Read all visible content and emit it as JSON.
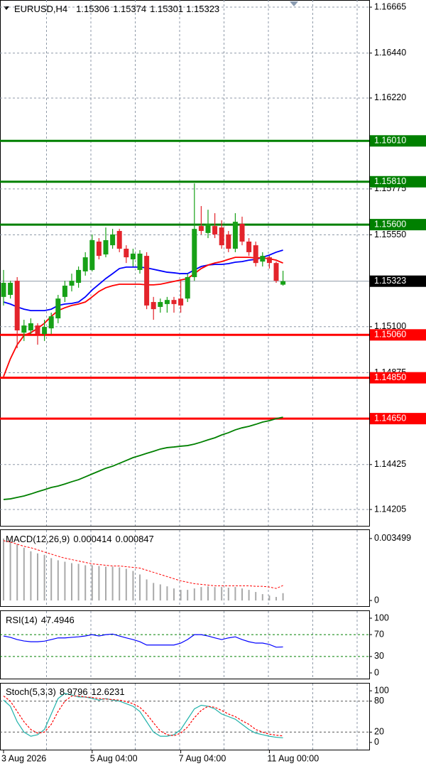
{
  "chart_data": [
    {
      "type": "candlestick",
      "title": "EURUSD,H4",
      "categories": [
        "3 Aug 2026",
        null,
        null,
        null,
        null,
        null,
        null,
        null,
        null,
        null,
        null,
        null,
        null,
        "5 Aug 04:00",
        null,
        null,
        null,
        null,
        null,
        null,
        null,
        null,
        null,
        null,
        null,
        null,
        "7 Aug 04:00",
        null,
        null,
        null,
        null,
        null,
        null,
        null,
        null,
        null,
        null,
        null,
        null,
        "11 Aug 00:00",
        null,
        null
      ],
      "open": [
        1.15246,
        1.15256,
        1.15325,
        1.15071,
        1.15082,
        1.15106,
        1.15064,
        1.15092,
        1.15141,
        1.15246,
        1.15301,
        1.15315,
        1.15371,
        1.15378,
        1.15517,
        1.15454,
        1.15499,
        1.15569,
        1.15482,
        1.1543,
        1.15378,
        1.15447,
        1.15221,
        1.15197,
        1.15211,
        1.15231,
        1.15238,
        1.15238,
        1.15343,
        1.15593,
        1.15559,
        1.15593,
        1.15586,
        1.15552,
        1.15482,
        1.15604,
        1.15517,
        1.15499,
        1.15419,
        1.1544,
        1.15412,
        1.15306
      ],
      "high": [
        1.15378,
        1.15325,
        1.15343,
        1.15134,
        1.15141,
        1.15117,
        1.15134,
        1.15169,
        1.15256,
        1.15325,
        1.1536,
        1.15395,
        1.15465,
        1.15552,
        1.15534,
        1.15586,
        1.15579,
        1.15579,
        1.15499,
        1.15482,
        1.15475,
        1.15465,
        1.15246,
        1.15238,
        1.15246,
        1.15246,
        1.15325,
        1.1536,
        1.15802,
        1.15691,
        1.15673,
        1.15656,
        1.15621,
        1.15569,
        1.15656,
        1.15639,
        1.15534,
        1.15517,
        1.15465,
        1.15447,
        1.15419,
        1.15374
      ],
      "low": [
        1.15204,
        1.15238,
        1.14995,
        1.1503,
        1.15064,
        1.15012,
        1.1503,
        1.15064,
        1.15117,
        1.15221,
        1.15273,
        1.15291,
        1.1535,
        1.15371,
        1.1543,
        1.1544,
        1.15482,
        1.15465,
        1.15412,
        1.15395,
        1.1536,
        1.15186,
        1.15134,
        1.15169,
        1.15169,
        1.15169,
        1.15169,
        1.15221,
        1.15325,
        1.15552,
        1.15534,
        1.15534,
        1.15482,
        1.15465,
        1.15465,
        1.15499,
        1.15447,
        1.15395,
        1.15395,
        1.15385,
        1.15315,
        1.15301
      ],
      "close": [
        1.15315,
        1.15315,
        1.15082,
        1.15106,
        1.15117,
        1.15064,
        1.15099,
        1.15151,
        1.15238,
        1.15301,
        1.15325,
        1.15378,
        1.1544,
        1.15524,
        1.15447,
        1.15524,
        1.15552,
        1.15482,
        1.1544,
        1.15458,
        1.15458,
        1.15204,
        1.15186,
        1.15221,
        1.15231,
        1.15211,
        1.15204,
        1.15343,
        1.15579,
        1.15569,
        1.15604,
        1.15552,
        1.15499,
        1.15482,
        1.15614,
        1.15517,
        1.15465,
        1.15412,
        1.15447,
        1.15412,
        1.15325,
        1.15323
      ],
      "up_color": "#17a117",
      "down_color": "#e3242b",
      "lines": [
        {
          "color": "#0000ff",
          "values": [
            1.15221,
            1.15211,
            1.15197,
            1.15186,
            1.15179,
            1.15179,
            1.15179,
            1.15186,
            1.15204,
            1.15211,
            1.15214,
            1.15221,
            1.15246,
            1.1528,
            1.15308,
            1.15336,
            1.1536,
            1.15385,
            1.15392,
            1.15392,
            1.15392,
            1.15388,
            1.15381,
            1.15374,
            1.15367,
            1.15364,
            1.1536,
            1.1536,
            1.15378,
            1.15395,
            1.15402,
            1.15405,
            1.15405,
            1.15409,
            1.15416,
            1.15419,
            1.15426,
            1.1543,
            1.1544,
            1.15451,
            1.15465,
            1.15475
          ]
        },
        {
          "color": "#ff0000",
          "values": [
            1.14856,
            1.14943,
            1.15012,
            1.15057,
            1.15071,
            1.15092,
            1.15117,
            1.15151,
            1.15179,
            1.15193,
            1.15204,
            1.15211,
            1.15221,
            1.15246,
            1.15273,
            1.15291,
            1.15301,
            1.15308,
            1.15308,
            1.15308,
            1.15308,
            1.15305,
            1.15305,
            1.15308,
            1.15315,
            1.15322,
            1.15329,
            1.15336,
            1.1536,
            1.15385,
            1.15402,
            1.15412,
            1.15419,
            1.1543,
            1.1544,
            1.1544,
            1.1544,
            1.15437,
            1.15437,
            1.15433,
            1.15426,
            1.15412
          ]
        },
        {
          "color": "#008000",
          "values": [
            1.14254,
            1.14257,
            1.14264,
            1.14271,
            1.14281,
            1.14292,
            1.14302,
            1.14313,
            1.1432,
            1.1433,
            1.14341,
            1.14351,
            1.14365,
            1.14379,
            1.14393,
            1.14407,
            1.14417,
            1.14431,
            1.14445,
            1.14459,
            1.14469,
            1.1448,
            1.1449,
            1.14501,
            1.14508,
            1.14511,
            1.14515,
            1.14518,
            1.14525,
            1.14535,
            1.14546,
            1.14556,
            1.1457,
            1.14581,
            1.14595,
            1.14605,
            1.14612,
            1.14622,
            1.14633,
            1.1464,
            1.1465,
            1.14657
          ]
        }
      ],
      "ylim": [
        1.14125,
        1.167
      ],
      "yticks": [
        1.16665,
        {
          "value": 1.1644,
          "label": "1.16440"
        },
        {
          "value": 1.1622,
          "label": "1.16220"
        },
        1.15775,
        {
          "value": 1.1555,
          "label": "1.15550"
        },
        {
          "value": 1.151,
          "label": "1.15100"
        },
        1.14875,
        1.14425,
        1.14205
      ],
      "grid": true,
      "levels": [
        {
          "value": 1.1601,
          "label": "1.16010",
          "color": "#008000"
        },
        {
          "value": 1.1581,
          "label": "1.15810",
          "color": "#008000"
        },
        {
          "value": 1.156,
          "label": "1.15600",
          "color": "#008000"
        },
        {
          "value": 1.1506,
          "label": "1.15060",
          "color": "#ff0000"
        },
        {
          "value": 1.1485,
          "label": "1.14850",
          "color": "#ff0000"
        },
        {
          "value": 1.1465,
          "label": "1.14650",
          "color": "#ff0000"
        }
      ],
      "last_price": 1.15323
    },
    {
      "type": "macd",
      "title": "MACD(12,26,9)",
      "values": [
        0.0035,
        0.00338,
        0.00318,
        0.00298,
        0.00278,
        0.00266,
        0.00258,
        0.00239,
        0.00227,
        0.00219,
        0.00211,
        0.00207,
        0.00199,
        0.00199,
        0.00195,
        0.00191,
        0.00191,
        0.00187,
        0.00179,
        0.00167,
        0.00147,
        0.00119,
        0.00099,
        0.00091,
        0.0008,
        0.00068,
        0.0006,
        0.0006,
        0.00068,
        0.00076,
        0.0008,
        0.00076,
        0.00076,
        0.00072,
        0.00076,
        0.00068,
        0.0006,
        0.00048,
        0.00036,
        0.00028,
        0.0002,
        0.000414
      ],
      "color": "#a9a9a9",
      "signal": [
        0.00338,
        0.0033,
        0.00318,
        0.00306,
        0.00298,
        0.00286,
        0.00274,
        0.00262,
        0.0025,
        0.00239,
        0.00231,
        0.00223,
        0.00215,
        0.00207,
        0.00203,
        0.00199,
        0.00195,
        0.00195,
        0.00191,
        0.00187,
        0.00183,
        0.00171,
        0.00159,
        0.00147,
        0.00135,
        0.00123,
        0.00111,
        0.00103,
        0.00095,
        0.00091,
        0.00087,
        0.00083,
        0.00083,
        0.00083,
        0.00083,
        0.00083,
        0.00083,
        0.0008,
        0.0008,
        0.00076,
        0.00068,
        0.000847
      ],
      "signal_color": "#ff0000",
      "ylim": [
        -0.000318,
        0.003976
      ],
      "yticks": [
        0.003499,
        0
      ]
    },
    {
      "type": "rsi",
      "title": "RSI(14)",
      "values": [
        67.5,
        65,
        61,
        58.4,
        57,
        57,
        58,
        61,
        64,
        64,
        65,
        66,
        67.5,
        70,
        67.5,
        70,
        71,
        67.5,
        64,
        61,
        57,
        51,
        51,
        51,
        51,
        51,
        54.5,
        61,
        70,
        70,
        67.5,
        64,
        61,
        64,
        66,
        61,
        57,
        54.5,
        54.5,
        52,
        47,
        47.4946
      ],
      "color": "#0000ff",
      "levels": [
        70,
        30
      ],
      "level_color": "#008000",
      "ylim": [
        -10.4,
        113
      ],
      "yticks": [
        100,
        70,
        30,
        0
      ]
    },
    {
      "type": "stochastic",
      "title": "Stoch(5,3,3)",
      "values": [
        82,
        70,
        40,
        20,
        12,
        15,
        25,
        55,
        85,
        95,
        92,
        88,
        88,
        85,
        82,
        85,
        82,
        80,
        75,
        70,
        60,
        40,
        20,
        12,
        12,
        15,
        25,
        45,
        65,
        72,
        70,
        65,
        55,
        50,
        45,
        35,
        25,
        18,
        15,
        12,
        10,
        8.9796
      ],
      "color": "#20b2aa",
      "signal": [
        90,
        80,
        60,
        40,
        25,
        18,
        20,
        35,
        60,
        80,
        90,
        90,
        88,
        87,
        85,
        84,
        83,
        82,
        79,
        75,
        68,
        55,
        38,
        22,
        15,
        13,
        18,
        30,
        48,
        62,
        70,
        68,
        62,
        55,
        50,
        42,
        35,
        25,
        20,
        16,
        14,
        12.6231
      ],
      "signal_color": "#ff0000",
      "levels": [
        80,
        20
      ],
      "level_color": "#555555",
      "ylim": [
        -14,
        114
      ],
      "yticks": [
        100,
        80,
        20,
        0
      ]
    }
  ]
}
